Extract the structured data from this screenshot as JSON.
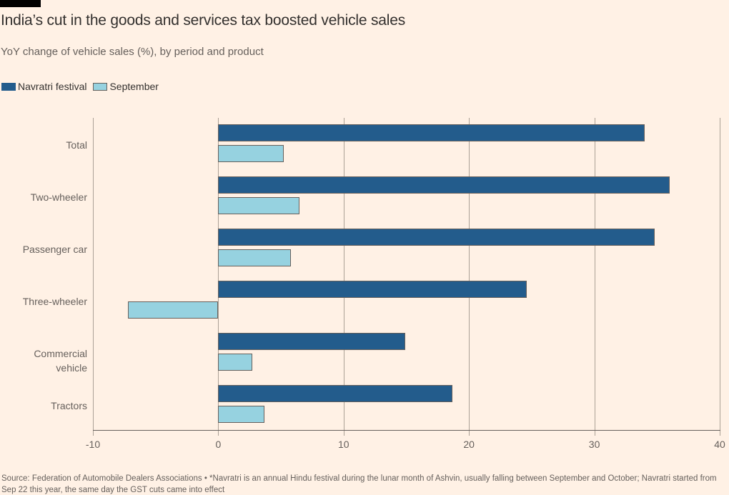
{
  "header": {
    "title": "India’s cut in the goods and services tax boosted vehicle sales",
    "subtitle": "YoY change of vehicle sales (%), by period and product"
  },
  "legend": [
    {
      "label": "Navratri festival",
      "color": "#235C8C"
    },
    {
      "label": "September",
      "color": "#96D2E0"
    }
  ],
  "chart_data": {
    "type": "bar",
    "orientation": "horizontal",
    "title": "India’s cut in the goods and services tax boosted vehicle sales",
    "subtitle": "YoY change of vehicle sales (%), by period and product",
    "categories": [
      "Total",
      "Two-wheeler",
      "Passenger car",
      "Three-wheeler",
      "Commercial vehicle",
      "Tractors"
    ],
    "series": [
      {
        "name": "Navratri festival",
        "color": "#235C8C",
        "values": [
          34,
          36,
          34.8,
          24.6,
          14.9,
          18.7
        ]
      },
      {
        "name": "September",
        "color": "#96D2E0",
        "values": [
          5.2,
          6.5,
          5.8,
          -7.2,
          2.7,
          3.7
        ]
      }
    ],
    "xlabel": "",
    "ylabel": "",
    "xlim": [
      -10,
      40
    ],
    "xticks": [
      -10,
      0,
      10,
      20,
      30,
      40
    ],
    "grid": "vertical",
    "legend_position": "top-left"
  },
  "colors": {
    "background": "#FFF1E5",
    "brand_bar": "#000000",
    "navratri_bar": "#235C8C",
    "september_bar": "#96D2E0",
    "bar_border": "#66605C",
    "gridline": "#aba196",
    "axis": "#66605C",
    "title_text": "#33302E",
    "muted_text": "#66605C"
  },
  "footer": {
    "source": "Source: Federation of Automobile Dealers Associations • *Navratri is an annual Hindu festival during the lunar month of Ashvin, usually falling between September and October; Navratri started from Sep 22 this year, the same day the GST cuts came into effect"
  }
}
